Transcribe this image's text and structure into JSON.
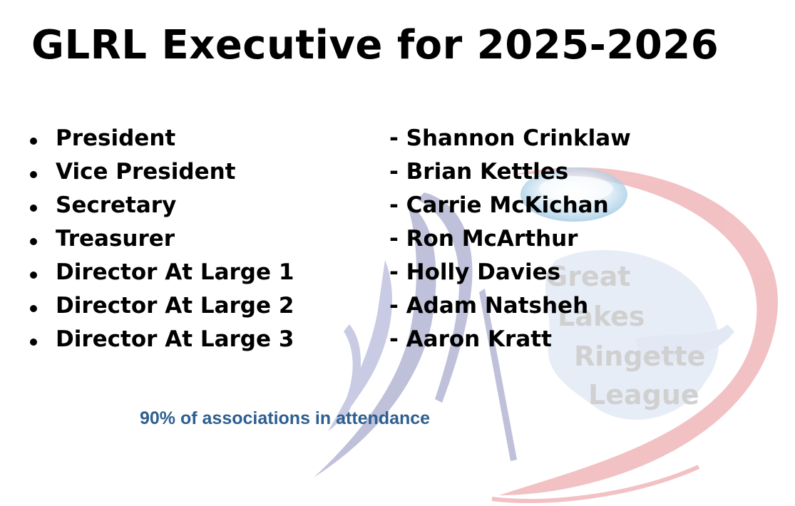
{
  "title": "GLRL Executive for 2025-2026",
  "executive": [
    {
      "role": "President",
      "name": "- Shannon Crinklaw"
    },
    {
      "role": "Vice President",
      "name": "- Brian Kettles"
    },
    {
      "role": "Secretary",
      "name": "- Carrie McKichan"
    },
    {
      "role": "Treasurer",
      "name": "- Ron McArthur"
    },
    {
      "role": "Director At Large 1",
      "name": "- Holly Davies"
    },
    {
      "role": "Director At Large 2",
      "name": "- Adam Natsheh"
    },
    {
      "role": "Director At Large 3",
      "name": "- Aaron Kratt"
    }
  ],
  "attendance_note": "90% of associations in attendance",
  "logo": {
    "text_lines": [
      "Great",
      "Lakes",
      "Ringette",
      "League"
    ]
  },
  "colors": {
    "title": "#000000",
    "attendance_text": "#2e5f8f",
    "logo_ring": "#e8a3a6",
    "logo_feather": "#9aa0c8",
    "logo_text": "#a9a9a9",
    "logo_lakes": "#c9d6ea"
  }
}
